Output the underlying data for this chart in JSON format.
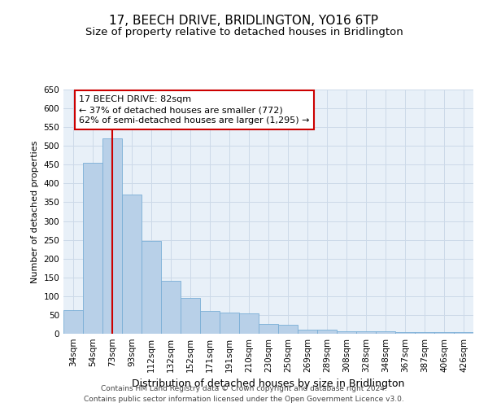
{
  "title": "17, BEECH DRIVE, BRIDLINGTON, YO16 6TP",
  "subtitle": "Size of property relative to detached houses in Bridlington",
  "xlabel": "Distribution of detached houses by size in Bridlington",
  "ylabel": "Number of detached properties",
  "categories": [
    "34sqm",
    "54sqm",
    "73sqm",
    "93sqm",
    "112sqm",
    "132sqm",
    "152sqm",
    "171sqm",
    "191sqm",
    "210sqm",
    "230sqm",
    "250sqm",
    "269sqm",
    "289sqm",
    "308sqm",
    "328sqm",
    "348sqm",
    "367sqm",
    "387sqm",
    "406sqm",
    "426sqm"
  ],
  "values": [
    62,
    455,
    520,
    370,
    247,
    140,
    95,
    60,
    57,
    55,
    25,
    23,
    10,
    11,
    7,
    7,
    6,
    5,
    4,
    5,
    4
  ],
  "bar_color": "#b8d0e8",
  "bar_edge_color": "#7aaed6",
  "vline_x_index": 2,
  "vline_color": "#cc0000",
  "annotation_line1": "17 BEECH DRIVE: 82sqm",
  "annotation_line2": "← 37% of detached houses are smaller (772)",
  "annotation_line3": "62% of semi-detached houses are larger (1,295) →",
  "annotation_box_facecolor": "#ffffff",
  "annotation_box_edgecolor": "#cc0000",
  "ylim": [
    0,
    650
  ],
  "grid_color": "#ccd9e8",
  "background_color": "#e8f0f8",
  "footer_line1": "Contains HM Land Registry data © Crown copyright and database right 2024.",
  "footer_line2": "Contains public sector information licensed under the Open Government Licence v3.0.",
  "title_fontsize": 11,
  "subtitle_fontsize": 9.5,
  "xlabel_fontsize": 9,
  "ylabel_fontsize": 8,
  "tick_fontsize": 7.5,
  "annotation_fontsize": 8,
  "footer_fontsize": 6.5
}
